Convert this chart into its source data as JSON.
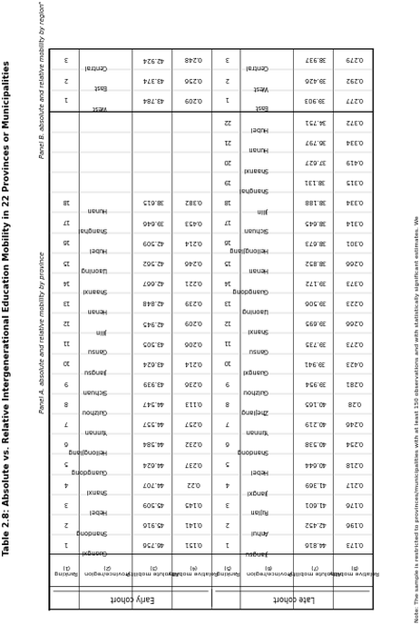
{
  "title": "Table 2.8: Absolute vs. Relative Intergenerational Education Mobility in 22 Provinces or Municipalities",
  "panel_a_label": "Panel A. absolute and relative mobility by province",
  "panel_b_label": "Panel B. absolute and relative mobility by regionᵃ",
  "col_headers": [
    "Ranking\n(1)",
    "Province/region\n(2)",
    "Absolute mobility\n(3)",
    "Relative mobility\n(4)",
    "Ranking\n(5)",
    "Province/region\n(6)",
    "Absolute mobility\n(7)",
    "Relative mobility\n(8)"
  ],
  "early_cohort_label": "Early cohort",
  "late_cohort_label": "Late cohort",
  "panel_a_rows": [
    [
      "1",
      "Guangxi",
      "46.756",
      "0.151",
      "1",
      "Jiangsu",
      "44.816",
      "0.173"
    ],
    [
      "2",
      "Shandong",
      "45.916",
      "0.141",
      "2",
      "Anhui",
      "42.452",
      "0.196"
    ],
    [
      "3",
      "Hebei",
      "45.509",
      "0.145",
      "3",
      "Fujian",
      "41.601",
      "0.176"
    ],
    [
      "4",
      "Shanxi",
      "44.707",
      "0.22",
      "4",
      "Jiangxi",
      "41.369",
      "0.217"
    ],
    [
      "5",
      "Guangdong",
      "44.624",
      "0.237",
      "5",
      "Hebei",
      "40.644",
      "0.218"
    ],
    [
      "6",
      "Heilongjiang",
      "44.584",
      "0.232",
      "6",
      "Shandong",
      "40.538",
      "0.254"
    ],
    [
      "7",
      "Yunnan",
      "44.557",
      "0.257",
      "7",
      "Yunnan",
      "40.219",
      "0.246"
    ],
    [
      "8",
      "Guizhou",
      "44.547",
      "0.113",
      "8",
      "Zhejiang",
      "40.165",
      "0.28"
    ],
    [
      "9",
      "Sichuan",
      "43.939",
      "0.236",
      "9",
      "Guizhou",
      "39.954",
      "0.281"
    ],
    [
      "10",
      "Jiangsu",
      "43.624",
      "0.214",
      "10",
      "Guangxi",
      "39.941",
      "0.423"
    ],
    [
      "11",
      "Gansu",
      "43.505",
      "0.206",
      "11",
      "Gansu",
      "39.735",
      "0.273"
    ],
    [
      "12",
      "Jilin",
      "42.945",
      "0.209",
      "12",
      "Shanxi",
      "39.695",
      "0.266"
    ],
    [
      "13",
      "Henan",
      "42.848",
      "0.239",
      "13",
      "Liaoning",
      "39.506",
      "0.223"
    ],
    [
      "14",
      "Shaanxi",
      "42.667",
      "0.221",
      "14",
      "Guangdong",
      "39.172",
      "0.373"
    ],
    [
      "15",
      "Liaoning",
      "42.562",
      "0.246",
      "15",
      "Henan",
      "38.852",
      "0.266"
    ],
    [
      "16",
      "Hubei",
      "42.509",
      "0.214",
      "16",
      "Heilongjiang",
      "38.673",
      "0.301"
    ],
    [
      "17",
      "Shanghai",
      "39.646",
      "0.453",
      "17",
      "Sichuan",
      "38.645",
      "0.314"
    ],
    [
      "18",
      "Hunan",
      "38.615",
      "0.382",
      "18",
      "Jilin",
      "38.188",
      "0.334"
    ],
    [
      "",
      "",
      "",
      "",
      "19",
      "Shanghai",
      "38.131",
      "0.315"
    ],
    [
      "",
      "",
      "",
      "",
      "20",
      "Shaanxi",
      "37.627",
      "0.419"
    ],
    [
      "",
      "",
      "",
      "",
      "21",
      "Hunan",
      "36.797",
      "0.334"
    ],
    [
      "",
      "",
      "",
      "",
      "22",
      "Hubei",
      "34.751",
      "0.372"
    ]
  ],
  "panel_b_rows": [
    [
      "1",
      "West",
      "43.784",
      "0.209",
      "1",
      "East",
      "39.903",
      "0.277"
    ],
    [
      "2",
      "East",
      "43.374",
      "0.256",
      "2",
      "West",
      "39.426",
      "0.292"
    ],
    [
      "3",
      "Central",
      "42.924",
      "0.248",
      "3",
      "Central",
      "38.937",
      "0.279"
    ]
  ],
  "note": "Note: The sample is restricted to provinces/municipalities with at least 150 observations and with statistically significant estimates. We"
}
